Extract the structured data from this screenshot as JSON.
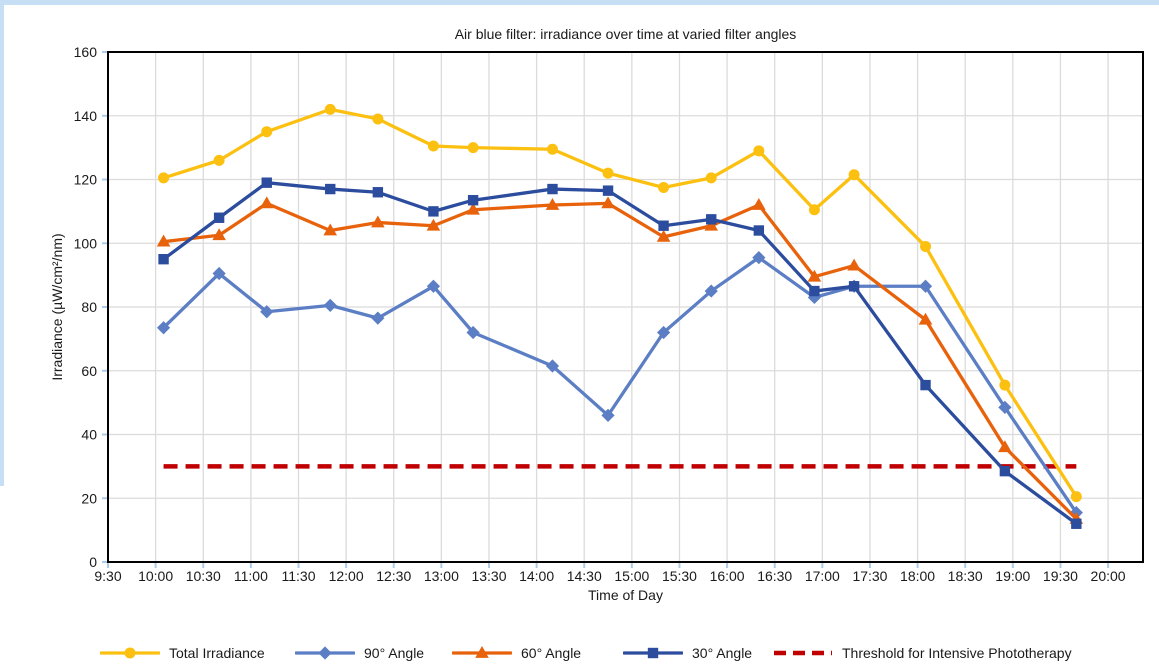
{
  "window": {
    "frame_color": "#C6DFF4"
  },
  "chart_data": {
    "type": "line",
    "title": "Air blue filter: irradiance over time at varied filter angles",
    "xlabel": "Time of Day",
    "ylabel": "Irradiance (µW/cm²/nm)",
    "ylim": [
      0,
      160
    ],
    "yticks": [
      0,
      20,
      40,
      60,
      80,
      100,
      120,
      140,
      160
    ],
    "xticks": [
      "9:30",
      "10:00",
      "10:30",
      "11:00",
      "11:30",
      "12:00",
      "12:30",
      "13:00",
      "13:30",
      "14:00",
      "14:30",
      "15:00",
      "15:30",
      "16:00",
      "16:30",
      "17:00",
      "17:30",
      "18:00",
      "18:30",
      "19:00",
      "19:30",
      "20:00"
    ],
    "grid": true,
    "legend_position": "bottom",
    "x": [
      "10:05",
      "10:40",
      "11:10",
      "11:50",
      "12:20",
      "12:55",
      "13:20",
      "14:10",
      "14:45",
      "15:20",
      "15:50",
      "16:20",
      "16:55",
      "17:20",
      "18:05",
      "18:55",
      "19:40"
    ],
    "series": [
      {
        "name": "Total Irradiance",
        "marker": "circle",
        "color": "#FCC010",
        "values": [
          120.5,
          126,
          135,
          142,
          139,
          130.5,
          130,
          129.5,
          122,
          117.5,
          120.5,
          129,
          110.5,
          121.5,
          99,
          55.5,
          20.5
        ]
      },
      {
        "name": "90° Angle",
        "marker": "diamond",
        "color": "#5B7EC4",
        "values": [
          73.5,
          90.5,
          78.5,
          80.5,
          76.5,
          86.5,
          72,
          61.5,
          46,
          72,
          85,
          95.5,
          83,
          86.5,
          86.5,
          48.5,
          15.5
        ]
      },
      {
        "name": "60° Angle",
        "marker": "triangle",
        "color": "#E8620C",
        "values": [
          100.5,
          102.5,
          112.5,
          104,
          106.5,
          105.5,
          110.5,
          112,
          112.5,
          102,
          105.5,
          112,
          89.5,
          93,
          76,
          36,
          13.5
        ]
      },
      {
        "name": "30° Angle",
        "marker": "square",
        "color": "#2C4C9E",
        "values": [
          95,
          108,
          119,
          117,
          116,
          110,
          113.5,
          117,
          116.5,
          105.5,
          107.5,
          104,
          85,
          86.5,
          55.5,
          28.5,
          12
        ]
      }
    ],
    "threshold": {
      "label": "Threshold for Intensive Phototherapy",
      "value": 30,
      "color": "#C00000",
      "style": "dashed"
    },
    "grid_color": "#DBDBDB",
    "axis_color": "#000000",
    "tick_color": "#AACCEA"
  }
}
